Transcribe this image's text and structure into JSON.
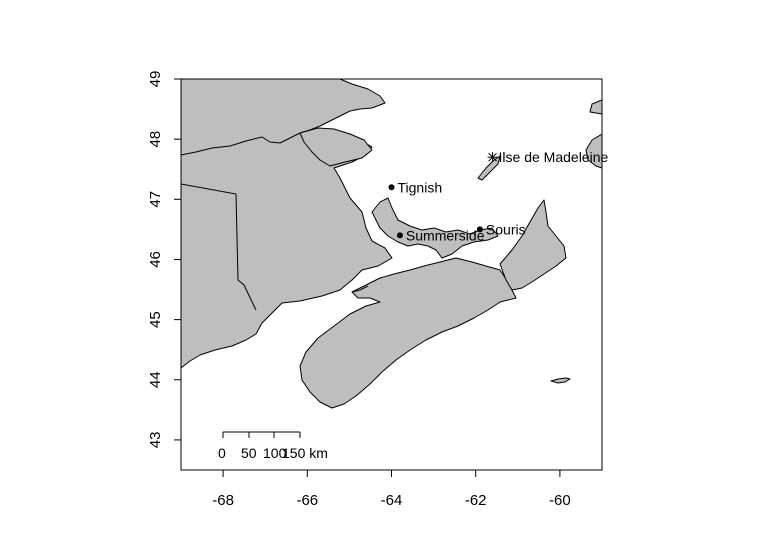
{
  "map": {
    "projection": "longitude/latitude",
    "xlim": [
      -69,
      -59
    ],
    "ylim": [
      42.5,
      49
    ],
    "x_ticks": [
      -68,
      -66,
      -64,
      -62,
      -60
    ],
    "y_ticks": [
      43,
      44,
      45,
      46,
      47,
      48,
      49
    ],
    "x_tick_labels": [
      "-68",
      "-66",
      "-64",
      "-62",
      "-60"
    ],
    "y_tick_labels": [
      "43",
      "44",
      "45",
      "46",
      "47",
      "48",
      "49"
    ],
    "colors": {
      "land": "#bebebe",
      "water": "#ffffff",
      "outline": "#000000"
    },
    "places": [
      {
        "name": "Tignish",
        "lon": -64.0,
        "lat": 47.2,
        "marker": "dot"
      },
      {
        "name": "Summerside",
        "lon": -63.8,
        "lat": 46.4,
        "marker": "dot"
      },
      {
        "name": "Souris",
        "lon": -61.9,
        "lat": 46.5,
        "marker": "dot"
      },
      {
        "name": "Ilse de Madeleine",
        "lon": -61.6,
        "lat": 47.7,
        "marker": "asterisk"
      }
    ],
    "scale_bar": {
      "ticks": [
        "0",
        "50",
        "100",
        "150 km"
      ],
      "length_km": 150
    }
  }
}
